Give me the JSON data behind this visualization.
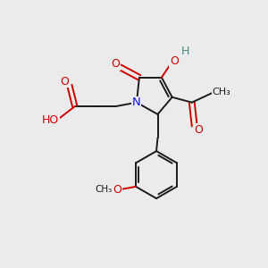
{
  "background_color": "#ebebeb",
  "bond_color": "#1a1a1a",
  "nitrogen_color": "#1414e0",
  "oxygen_color": "#cc0000",
  "hydrogen_color": "#4a8888",
  "figsize": [
    3.0,
    3.0
  ],
  "dpi": 100,
  "xlim": [
    0,
    10
  ],
  "ylim": [
    0,
    10
  ]
}
